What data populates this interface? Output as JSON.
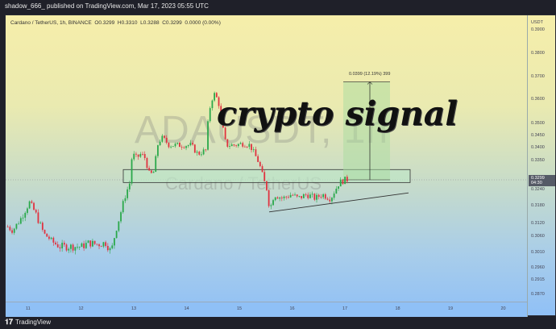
{
  "header": {
    "published": "shadow_666_ published on TradingView.com, Mar 17, 2023 05:55 UTC"
  },
  "legend": {
    "symbol": "Cardano / TetherUS, 1h, BINANCE",
    "open": "O0.3299",
    "high": "H0.3310",
    "low": "L0.3288",
    "close": "C0.3299",
    "change": "0.0000 (0.00%)"
  },
  "watermark": {
    "symbol": "ADAUSDT, 1h",
    "name": "Cardano / TetherUS"
  },
  "overlay_text": "crypto signal",
  "measure": {
    "label": "0.0399 (12.19%) 399",
    "from": 0.3299,
    "to": 0.3698
  },
  "support_zone": {
    "low": 0.3288,
    "high": 0.3335
  },
  "price_scale": {
    "currency": "USDT",
    "ticks": [
      "0.3900",
      "0.3800",
      "0.3700",
      "0.3600",
      "0.3500",
      "0.3450",
      "0.3400",
      "0.3350",
      "0.3240",
      "0.3180",
      "0.3120",
      "0.3060",
      "0.3010",
      "0.2960",
      "0.2915",
      "0.2870"
    ],
    "current_price": "0.3299",
    "countdown": "04:30"
  },
  "time_scale": {
    "ticks": [
      "11",
      "12",
      "13",
      "14",
      "15",
      "16",
      "17",
      "18",
      "19",
      "20"
    ]
  },
  "colors": {
    "up": "#2aa84a",
    "down": "#e0323f",
    "zone_fill": "#bfe6c6",
    "measure_fill": "#a9dca0"
  },
  "footer": {
    "logo": "TradingView"
  },
  "chart_data": {
    "type": "candlestick",
    "symbol": "ADAUSDT",
    "interval": "1h",
    "approx_closes": [
      [
        "03-10 15:00",
        0.3125
      ],
      [
        "03-10 17:00",
        0.3109
      ],
      [
        "03-10 21:00",
        0.3153
      ],
      [
        "03-11 01:00",
        0.321
      ],
      [
        "03-11 04:00",
        0.3166
      ],
      [
        "03-11 08:00",
        0.309
      ],
      [
        "03-11 12:00",
        0.3055
      ],
      [
        "03-11 15:00",
        0.3043
      ],
      [
        "03-11 21:00",
        0.3043
      ],
      [
        "03-12 01:00",
        0.3043
      ],
      [
        "03-12 04:00",
        0.3055
      ],
      [
        "03-12 08:00",
        0.305
      ],
      [
        "03-12 12:00",
        0.3055
      ],
      [
        "03-12 14:00",
        0.303
      ],
      [
        "03-12 15:00",
        0.3043
      ],
      [
        "03-12 17:00",
        0.3125
      ],
      [
        "03-12 19:00",
        0.318
      ],
      [
        "03-12 21:00",
        0.324
      ],
      [
        "03-12 23:00",
        0.3289
      ],
      [
        "03-13 00:00",
        0.3394
      ],
      [
        "03-13 02:00",
        0.3378
      ],
      [
        "03-13 04:00",
        0.3394
      ],
      [
        "03-13 06:00",
        0.3378
      ],
      [
        "03-13 08:00",
        0.3313
      ],
      [
        "03-13 10:00",
        0.3328
      ],
      [
        "03-13 12:00",
        0.3445
      ],
      [
        "03-13 14:00",
        0.346
      ],
      [
        "03-13 17:00",
        0.343
      ],
      [
        "03-13 21:00",
        0.343
      ],
      [
        "03-14 03:00",
        0.343
      ],
      [
        "03-14 06:00",
        0.3394
      ],
      [
        "03-14 10:00",
        0.341
      ],
      [
        "03-14 11:00",
        0.356
      ],
      [
        "03-14 13:00",
        0.3636
      ],
      [
        "03-14 14:00",
        0.3646
      ],
      [
        "03-14 16:00",
        0.3593
      ],
      [
        "03-14 17:00",
        0.3527
      ],
      [
        "03-14 19:00",
        0.343
      ],
      [
        "03-14 23:00",
        0.343
      ],
      [
        "03-15 03:00",
        0.3437
      ],
      [
        "03-15 06:00",
        0.343
      ],
      [
        "03-15 08:00",
        0.3394
      ],
      [
        "03-15 10:00",
        0.3362
      ],
      [
        "03-15 12:00",
        0.3305
      ],
      [
        "03-15 14:00",
        0.3254
      ],
      [
        "03-15 15:00",
        0.318
      ],
      [
        "03-15 17:00",
        0.324
      ],
      [
        "03-15 21:00",
        0.3225
      ],
      [
        "03-16 01:00",
        0.324
      ],
      [
        "03-16 04:00",
        0.3225
      ],
      [
        "03-16 08:00",
        0.324
      ],
      [
        "03-16 12:00",
        0.3225
      ],
      [
        "03-16 15:00",
        0.324
      ],
      [
        "03-16 19:00",
        0.3225
      ],
      [
        "03-16 23:00",
        0.3289
      ],
      [
        "03-17 02:00",
        0.3299
      ],
      [
        "03-17 03:00",
        0.3299
      ]
    ]
  }
}
